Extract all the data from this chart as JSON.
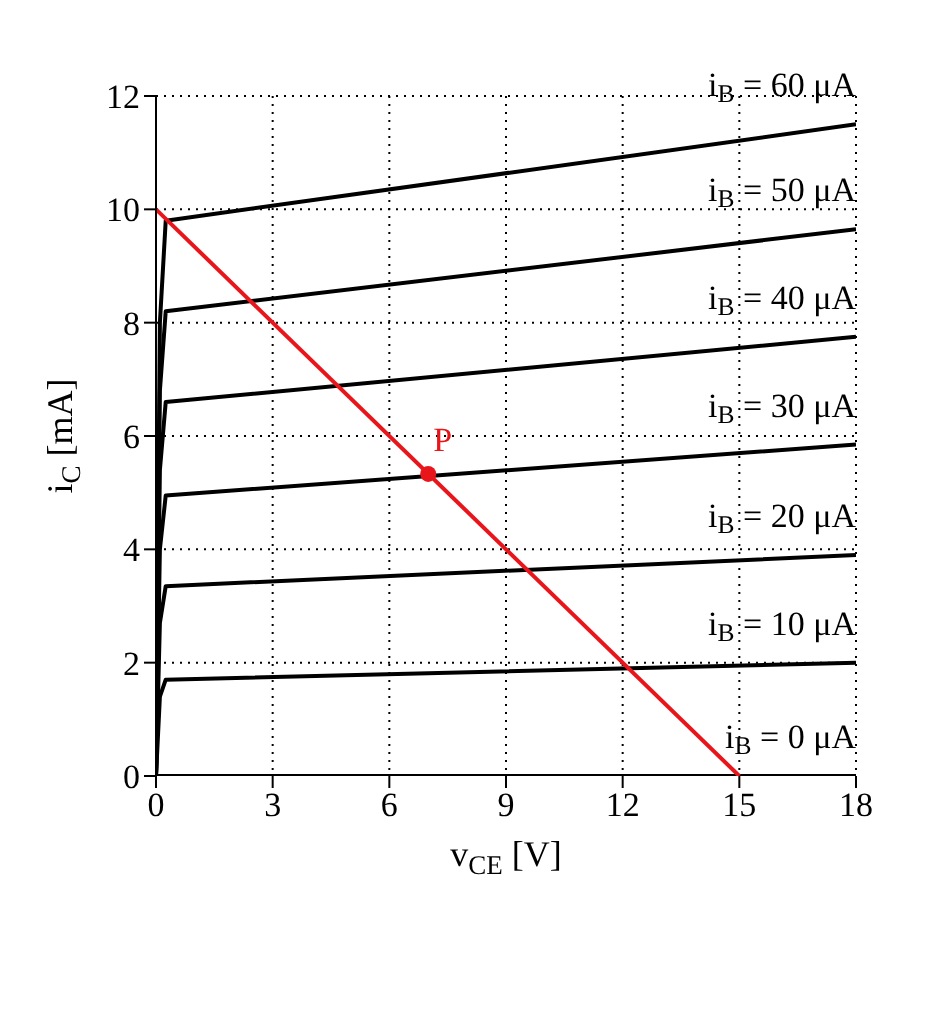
{
  "chart_data": {
    "type": "line",
    "xlabel": "v$_{CE}$ [V]",
    "ylabel": "i$_{C}$ [mA]",
    "xlim": [
      0,
      18
    ],
    "ylim": [
      0,
      12
    ],
    "xticks": [
      0,
      3,
      6,
      9,
      12,
      15,
      18
    ],
    "yticks": [
      0,
      2,
      4,
      6,
      8,
      10,
      12
    ],
    "grid": true,
    "legend": false,
    "marker": "none",
    "line_style": "solid",
    "series": [
      {
        "name": "i$_{B}$ = 60 μA",
        "color": "#000000",
        "x": [
          0,
          0.1,
          0.25,
          18
        ],
        "values": [
          0,
          8,
          9.8,
          11.5
        ]
      },
      {
        "name": "i$_{B}$ = 50 μA",
        "color": "#000000",
        "x": [
          0,
          0.1,
          0.25,
          18
        ],
        "values": [
          0,
          6.8,
          8.2,
          9.65
        ]
      },
      {
        "name": "i$_{B}$ = 40 μA",
        "color": "#000000",
        "x": [
          0,
          0.1,
          0.25,
          18
        ],
        "values": [
          0,
          5.4,
          6.6,
          7.75
        ]
      },
      {
        "name": "i$_{B}$ = 30 μA",
        "color": "#000000",
        "x": [
          0,
          0.1,
          0.25,
          18
        ],
        "values": [
          0,
          4,
          4.95,
          5.85
        ]
      },
      {
        "name": "i$_{B}$ = 20 μA",
        "color": "#000000",
        "x": [
          0,
          0.1,
          0.25,
          18
        ],
        "values": [
          0,
          2.7,
          3.35,
          3.9
        ]
      },
      {
        "name": "i$_{B}$ = 10 μA",
        "color": "#000000",
        "x": [
          0,
          0.1,
          0.25,
          18
        ],
        "values": [
          0,
          1.4,
          1.7,
          2.0
        ]
      },
      {
        "name": "i$_{B}$ = 0 μA",
        "color": "#000000",
        "x": [
          0,
          18
        ],
        "values": [
          0,
          0
        ]
      },
      {
        "color": "#e8151b",
        "x": [
          0,
          15
        ],
        "values": [
          10,
          0
        ]
      },
      {
        "type": "scatter",
        "name": "P",
        "color": "#e8151b",
        "marker": "circle",
        "x": [
          7
        ],
        "values": [
          5.33
        ]
      }
    ]
  }
}
